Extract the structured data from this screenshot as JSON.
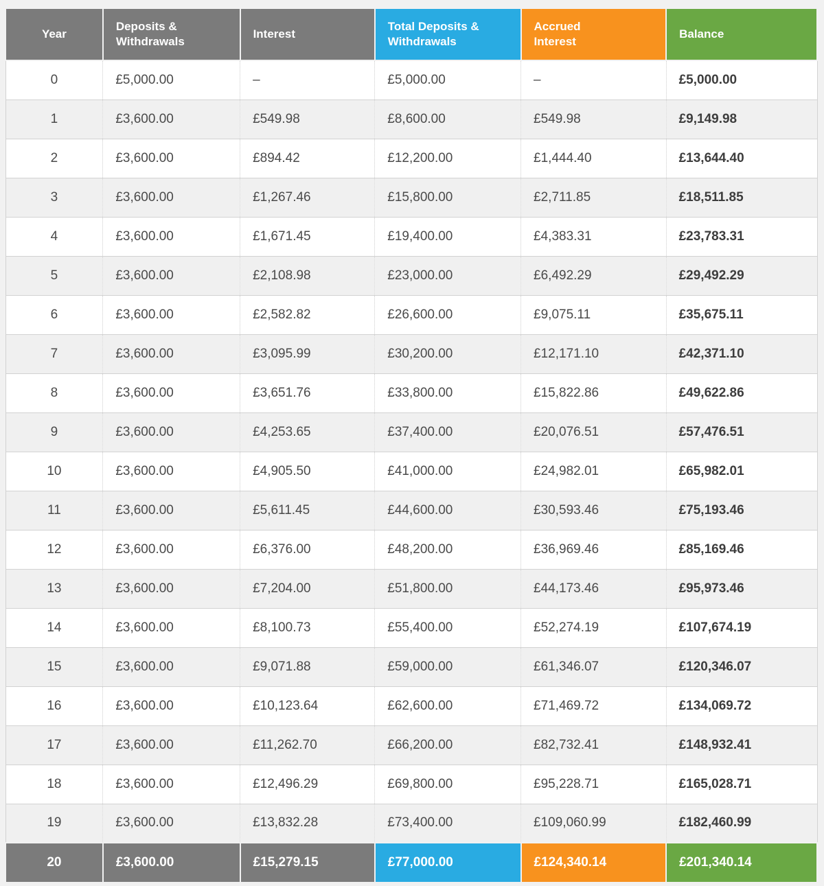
{
  "colors": {
    "header_gray": "#7b7b7b",
    "header_blue": "#29abe2",
    "header_orange": "#f8921e",
    "header_green": "#6aa844",
    "row_alt": "#f0f0f0",
    "page_background": "#f1f1f1",
    "body_text": "#4a4a4a",
    "header_text": "#ffffff"
  },
  "chart_data": {
    "type": "table",
    "columns": [
      {
        "key": "year",
        "label": "Year",
        "header_color": "#7b7b7b"
      },
      {
        "key": "deposits",
        "label": "Deposits & Withdrawals",
        "header_color": "#7b7b7b"
      },
      {
        "key": "interest",
        "label": "Interest",
        "header_color": "#7b7b7b"
      },
      {
        "key": "total_deposits",
        "label": "Total Deposits & Withdrawals",
        "header_color": "#29abe2"
      },
      {
        "key": "accrued_interest",
        "label": "Accrued Interest",
        "header_color": "#f8921e"
      },
      {
        "key": "balance",
        "label": "Balance",
        "header_color": "#6aa844"
      }
    ],
    "rows": [
      [
        "0",
        "£5,000.00",
        "–",
        "£5,000.00",
        "–",
        "£5,000.00"
      ],
      [
        "1",
        "£3,600.00",
        "£549.98",
        "£8,600.00",
        "£549.98",
        "£9,149.98"
      ],
      [
        "2",
        "£3,600.00",
        "£894.42",
        "£12,200.00",
        "£1,444.40",
        "£13,644.40"
      ],
      [
        "3",
        "£3,600.00",
        "£1,267.46",
        "£15,800.00",
        "£2,711.85",
        "£18,511.85"
      ],
      [
        "4",
        "£3,600.00",
        "£1,671.45",
        "£19,400.00",
        "£4,383.31",
        "£23,783.31"
      ],
      [
        "5",
        "£3,600.00",
        "£2,108.98",
        "£23,000.00",
        "£6,492.29",
        "£29,492.29"
      ],
      [
        "6",
        "£3,600.00",
        "£2,582.82",
        "£26,600.00",
        "£9,075.11",
        "£35,675.11"
      ],
      [
        "7",
        "£3,600.00",
        "£3,095.99",
        "£30,200.00",
        "£12,171.10",
        "£42,371.10"
      ],
      [
        "8",
        "£3,600.00",
        "£3,651.76",
        "£33,800.00",
        "£15,822.86",
        "£49,622.86"
      ],
      [
        "9",
        "£3,600.00",
        "£4,253.65",
        "£37,400.00",
        "£20,076.51",
        "£57,476.51"
      ],
      [
        "10",
        "£3,600.00",
        "£4,905.50",
        "£41,000.00",
        "£24,982.01",
        "£65,982.01"
      ],
      [
        "11",
        "£3,600.00",
        "£5,611.45",
        "£44,600.00",
        "£30,593.46",
        "£75,193.46"
      ],
      [
        "12",
        "£3,600.00",
        "£6,376.00",
        "£48,200.00",
        "£36,969.46",
        "£85,169.46"
      ],
      [
        "13",
        "£3,600.00",
        "£7,204.00",
        "£51,800.00",
        "£44,173.46",
        "£95,973.46"
      ],
      [
        "14",
        "£3,600.00",
        "£8,100.73",
        "£55,400.00",
        "£52,274.19",
        "£107,674.19"
      ],
      [
        "15",
        "£3,600.00",
        "£9,071.88",
        "£59,000.00",
        "£61,346.07",
        "£120,346.07"
      ],
      [
        "16",
        "£3,600.00",
        "£10,123.64",
        "£62,600.00",
        "£71,469.72",
        "£134,069.72"
      ],
      [
        "17",
        "£3,600.00",
        "£11,262.70",
        "£66,200.00",
        "£82,732.41",
        "£148,932.41"
      ],
      [
        "18",
        "£3,600.00",
        "£12,496.29",
        "£69,800.00",
        "£95,228.71",
        "£165,028.71"
      ],
      [
        "19",
        "£3,600.00",
        "£13,832.28",
        "£73,400.00",
        "£109,060.99",
        "£182,460.99"
      ]
    ],
    "summary_row": [
      "20",
      "£3,600.00",
      "£15,279.15",
      "£77,000.00",
      "£124,340.14",
      "£201,340.14"
    ],
    "layout": {
      "column_widths_percent": [
        12,
        16.9,
        16.6,
        18.0,
        17.9,
        18.6
      ],
      "alternating_rows": true,
      "summary_row_highlighted": true
    }
  }
}
